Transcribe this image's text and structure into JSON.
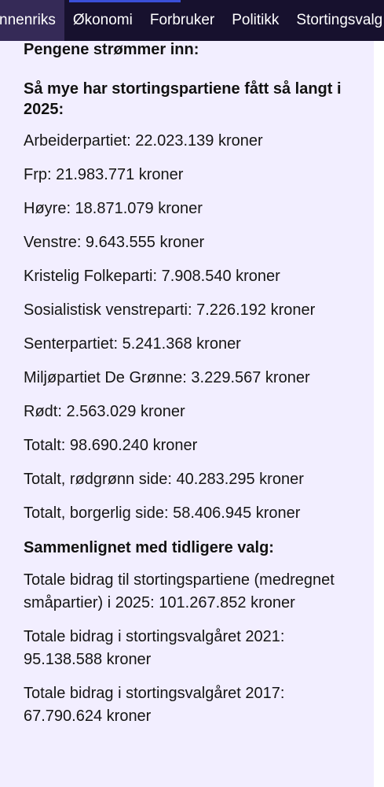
{
  "nav": {
    "items": [
      {
        "label": "nnenriks",
        "active": true
      },
      {
        "label": "Økonomi",
        "active": false
      },
      {
        "label": "Forbruker",
        "active": false
      },
      {
        "label": "Politikk",
        "active": false
      },
      {
        "label": "Stortingsvalg",
        "active": false
      }
    ]
  },
  "article": {
    "intro_heading": "Pengene strømmer inn:",
    "parties_heading": "Så mye har stortingspartiene fått så langt i 2025:",
    "parties": [
      "Arbeiderpartiet: 22.023.139 kroner",
      "Frp: 21.983.771 kroner",
      "Høyre: 18.871.079 kroner",
      "Venstre: 9.643.555 kroner",
      "Kristelig Folkeparti: 7.908.540 kroner",
      "Sosialistisk venstreparti: 7.226.192 kroner",
      "Senterpartiet: 5.241.368 kroner",
      "Miljøpartiet De Grønne: 3.229.567 kroner",
      "Rødt: 2.563.029 kroner",
      "Totalt: 98.690.240 kroner",
      "Totalt, rødgrønn side: 40.283.295 kroner",
      "Totalt, borgerlig side: 58.406.945 kroner"
    ],
    "compare_heading": "Sammenlignet med tidligere valg:",
    "comparisons": [
      "Totale bidrag til stortingspartiene (medregnet småpartier) i 2025: 101.267.852 kroner",
      "Totale bidrag i stortingsvalgåret 2021: 95.138.588 kroner",
      "Totale bidrag i stortingsvalgåret 2017: 67.790.624 kroner"
    ]
  },
  "colors": {
    "nav_background": "#17112e",
    "nav_active": "#352a57",
    "nav_accent": "#3a4fd8",
    "content_background": "#f2eeff"
  }
}
